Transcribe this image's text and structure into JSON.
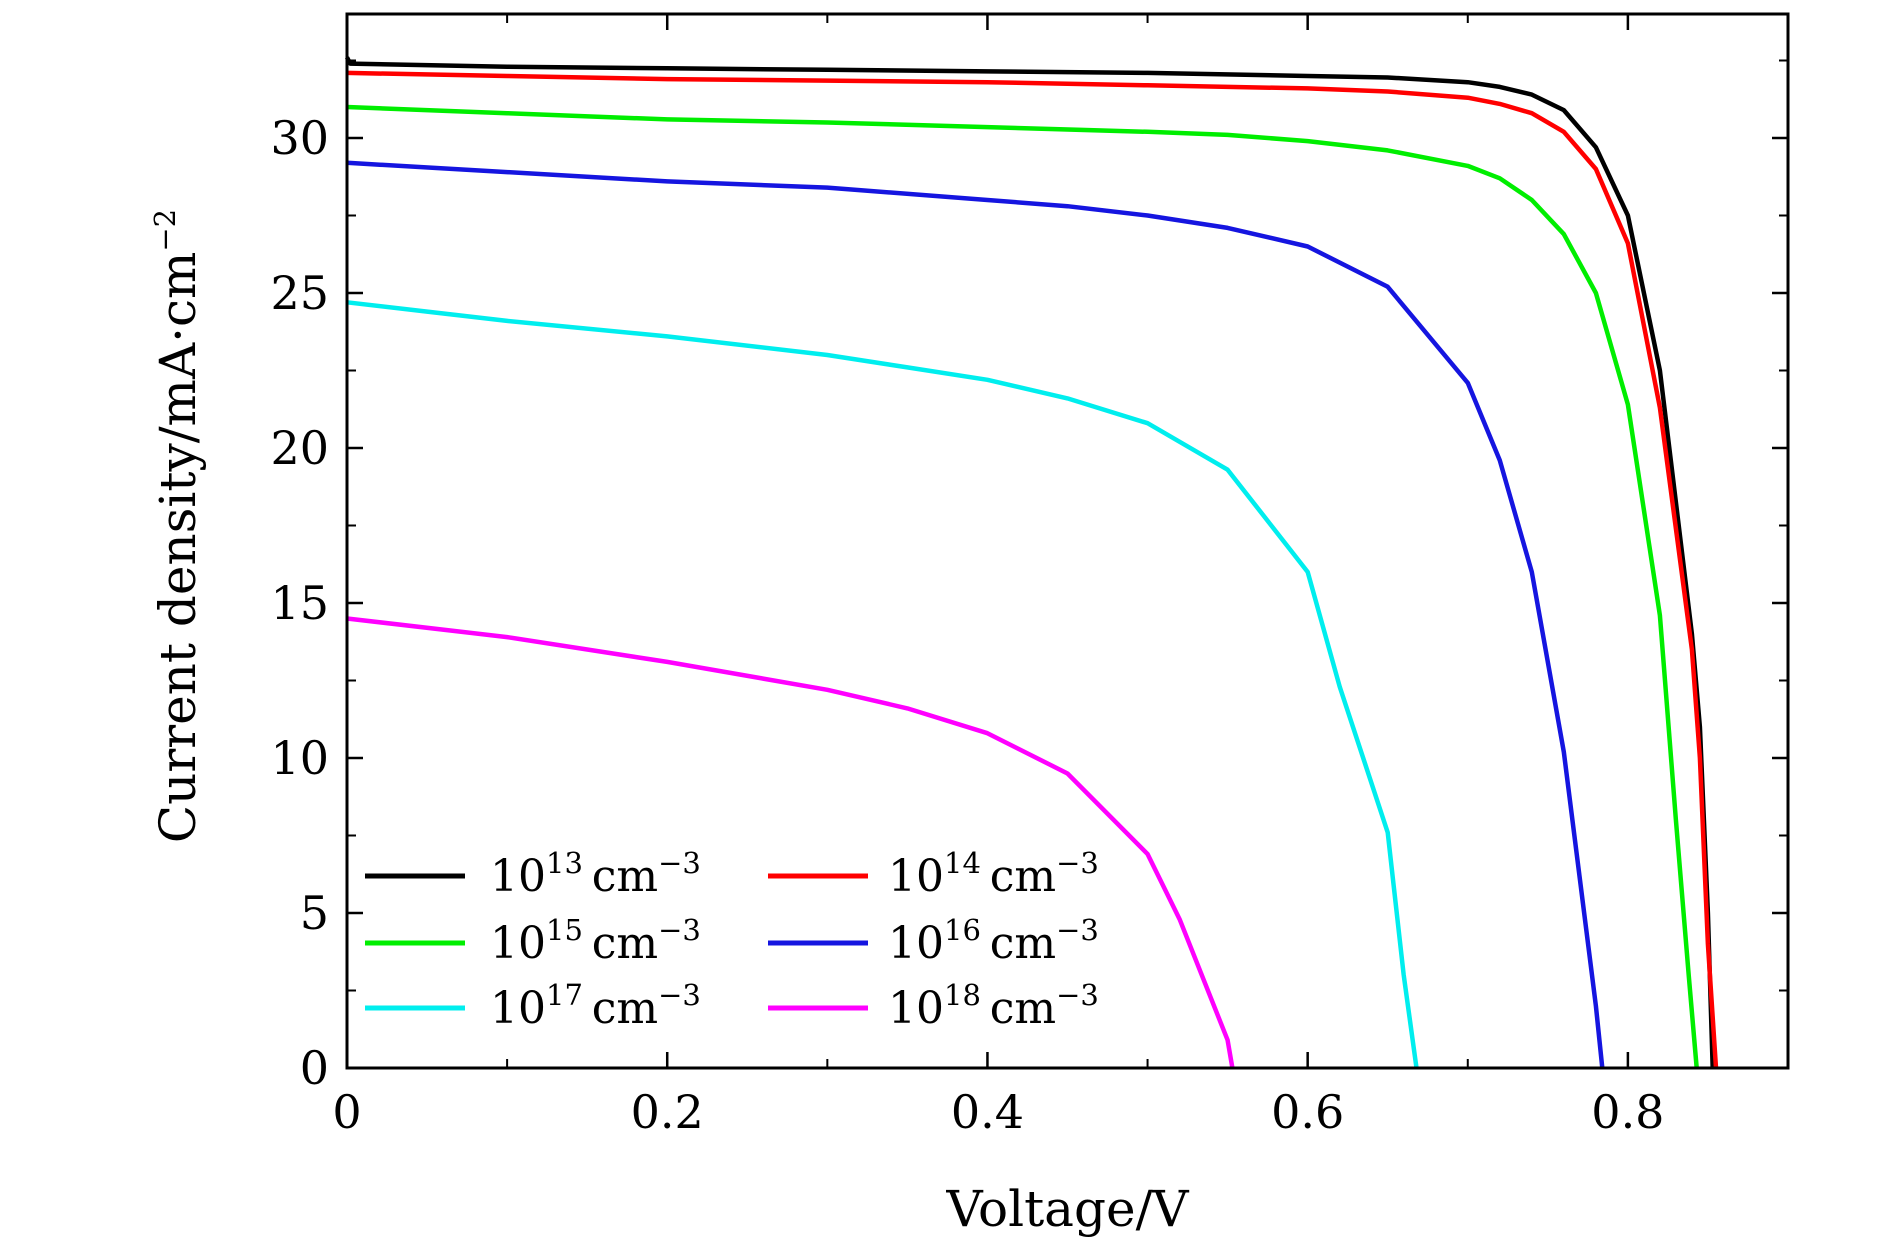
{
  "chart_data": {
    "type": "line",
    "title": "",
    "xlabel": "Voltage/V",
    "ylabel": {
      "base": "Current density/mA·cm",
      "exponent": "−2"
    },
    "xlim": [
      0,
      0.9
    ],
    "ylim": [
      0,
      34
    ],
    "xticks": [
      0,
      0.2,
      0.4,
      0.6,
      0.8
    ],
    "xtick_labels": [
      "0",
      "0.2",
      "0.4",
      "0.6",
      "0.8"
    ],
    "yticks": [
      0,
      5,
      10,
      15,
      20,
      25,
      30
    ],
    "ytick_labels": [
      "0",
      "5",
      "10",
      "15",
      "20",
      "25",
      "30"
    ],
    "grid": false,
    "legend_position": "bottom-left",
    "series": [
      {
        "name": "10^13 cm^-3",
        "legend_base": "10",
        "legend_exp": "13",
        "legend_unit": "cm",
        "legend_unit_exp": "−3",
        "color": "#000000",
        "points": [
          [
            0,
            32.6
          ],
          [
            0.002,
            32.4
          ],
          [
            0.1,
            32.3
          ],
          [
            0.2,
            32.25
          ],
          [
            0.3,
            32.2
          ],
          [
            0.4,
            32.15
          ],
          [
            0.5,
            32.1
          ],
          [
            0.6,
            32.0
          ],
          [
            0.65,
            31.95
          ],
          [
            0.7,
            31.8
          ],
          [
            0.72,
            31.65
          ],
          [
            0.74,
            31.4
          ],
          [
            0.76,
            30.9
          ],
          [
            0.78,
            29.7
          ],
          [
            0.8,
            27.5
          ],
          [
            0.82,
            22.5
          ],
          [
            0.84,
            14.0
          ],
          [
            0.845,
            11.0
          ],
          [
            0.85,
            5.0
          ],
          [
            0.853,
            0
          ]
        ]
      },
      {
        "name": "10^14 cm^-3",
        "legend_base": "10",
        "legend_exp": "14",
        "legend_unit": "cm",
        "legend_unit_exp": "−3",
        "color": "#ff0000",
        "points": [
          [
            0,
            32.1
          ],
          [
            0.1,
            32.0
          ],
          [
            0.2,
            31.9
          ],
          [
            0.3,
            31.85
          ],
          [
            0.4,
            31.8
          ],
          [
            0.5,
            31.7
          ],
          [
            0.6,
            31.6
          ],
          [
            0.65,
            31.5
          ],
          [
            0.7,
            31.3
          ],
          [
            0.72,
            31.1
          ],
          [
            0.74,
            30.8
          ],
          [
            0.76,
            30.2
          ],
          [
            0.78,
            29.0
          ],
          [
            0.8,
            26.6
          ],
          [
            0.82,
            21.3
          ],
          [
            0.84,
            13.5
          ],
          [
            0.845,
            10.0
          ],
          [
            0.85,
            4.0
          ],
          [
            0.855,
            0
          ]
        ]
      },
      {
        "name": "10^15 cm^-3",
        "legend_base": "10",
        "legend_exp": "15",
        "legend_unit": "cm",
        "legend_unit_exp": "−3",
        "color": "#00ee00",
        "points": [
          [
            0,
            31.0
          ],
          [
            0.1,
            30.8
          ],
          [
            0.2,
            30.6
          ],
          [
            0.3,
            30.5
          ],
          [
            0.4,
            30.35
          ],
          [
            0.5,
            30.2
          ],
          [
            0.55,
            30.1
          ],
          [
            0.6,
            29.9
          ],
          [
            0.65,
            29.6
          ],
          [
            0.7,
            29.1
          ],
          [
            0.72,
            28.7
          ],
          [
            0.74,
            28.0
          ],
          [
            0.76,
            26.9
          ],
          [
            0.78,
            25.0
          ],
          [
            0.8,
            21.4
          ],
          [
            0.82,
            14.6
          ],
          [
            0.83,
            8.0
          ],
          [
            0.838,
            3.0
          ],
          [
            0.843,
            0
          ]
        ]
      },
      {
        "name": "10^16 cm^-3",
        "legend_base": "10",
        "legend_exp": "16",
        "legend_unit": "cm",
        "legend_unit_exp": "−3",
        "color": "#1515e0",
        "points": [
          [
            0,
            29.2
          ],
          [
            0.1,
            28.9
          ],
          [
            0.2,
            28.6
          ],
          [
            0.3,
            28.4
          ],
          [
            0.4,
            28.0
          ],
          [
            0.45,
            27.8
          ],
          [
            0.5,
            27.5
          ],
          [
            0.55,
            27.1
          ],
          [
            0.6,
            26.5
          ],
          [
            0.65,
            25.2
          ],
          [
            0.7,
            22.1
          ],
          [
            0.72,
            19.6
          ],
          [
            0.74,
            16.0
          ],
          [
            0.76,
            10.2
          ],
          [
            0.78,
            2.0
          ],
          [
            0.784,
            0
          ]
        ]
      },
      {
        "name": "10^17 cm^-3",
        "legend_base": "10",
        "legend_exp": "17",
        "legend_unit": "cm",
        "legend_unit_exp": "−3",
        "color": "#00eeee",
        "points": [
          [
            0,
            24.7
          ],
          [
            0.05,
            24.4
          ],
          [
            0.1,
            24.1
          ],
          [
            0.2,
            23.6
          ],
          [
            0.3,
            23.0
          ],
          [
            0.35,
            22.6
          ],
          [
            0.4,
            22.2
          ],
          [
            0.45,
            21.6
          ],
          [
            0.5,
            20.8
          ],
          [
            0.55,
            19.3
          ],
          [
            0.6,
            16.0
          ],
          [
            0.62,
            12.3
          ],
          [
            0.65,
            7.6
          ],
          [
            0.66,
            3.0
          ],
          [
            0.668,
            0
          ]
        ]
      },
      {
        "name": "10^18 cm^-3",
        "legend_base": "10",
        "legend_exp": "18",
        "legend_unit": "cm",
        "legend_unit_exp": "−3",
        "color": "#ff00ff",
        "points": [
          [
            0,
            14.5
          ],
          [
            0.1,
            13.9
          ],
          [
            0.2,
            13.1
          ],
          [
            0.3,
            12.2
          ],
          [
            0.35,
            11.6
          ],
          [
            0.4,
            10.8
          ],
          [
            0.45,
            9.5
          ],
          [
            0.5,
            6.9
          ],
          [
            0.52,
            4.8
          ],
          [
            0.55,
            0.9
          ],
          [
            0.553,
            0
          ]
        ]
      }
    ]
  }
}
